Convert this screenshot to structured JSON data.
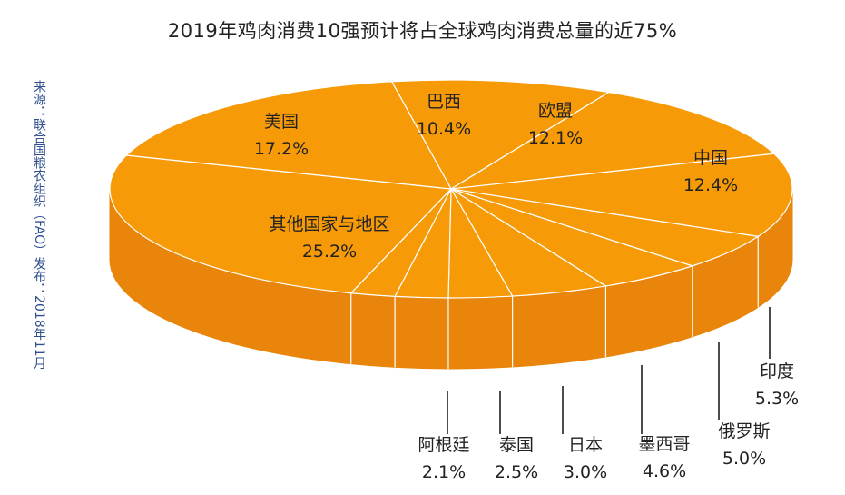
{
  "title": "2019年鸡肉消费10强预计将占全球鸡肉消费总量的近75%",
  "source": "来源：联合国粮农组织（FAO）发布：2018年11月",
  "colors": {
    "top": "#F79A08",
    "side": "#E8850A",
    "line": "#ffffff",
    "leader": "#111111"
  },
  "chart_data": {
    "type": "pie",
    "title": "2019年鸡肉消费10强预计将占全球鸡肉消费总量的近75%",
    "slices": [
      {
        "label": "巴西",
        "value": 10.4,
        "display": "10.4%"
      },
      {
        "label": "欧盟",
        "value": 12.1,
        "display": "12.1%"
      },
      {
        "label": "中国",
        "value": 12.4,
        "display": "12.4%"
      },
      {
        "label": "印度",
        "value": 5.3,
        "display": "5.3%"
      },
      {
        "label": "俄罗斯",
        "value": 5.0,
        "display": "5.0%"
      },
      {
        "label": "墨西哥",
        "value": 4.6,
        "display": "4.6%"
      },
      {
        "label": "日本",
        "value": 3.0,
        "display": "3.0%"
      },
      {
        "label": "泰国",
        "value": 2.5,
        "display": "2.5%"
      },
      {
        "label": "阿根廷",
        "value": 2.1,
        "display": "2.1%"
      },
      {
        "label": "其他国家与地区",
        "value": 25.2,
        "display": "25.2%"
      },
      {
        "label": "美国",
        "value": 17.2,
        "display": "17.2%"
      }
    ]
  }
}
